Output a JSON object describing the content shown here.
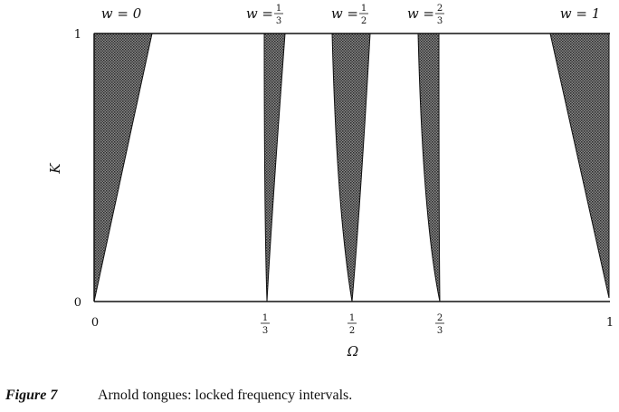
{
  "diagram": {
    "x_axis_label": "Ω",
    "y_axis_label": "K",
    "x_ticks": {
      "t0": "0",
      "t13": {
        "num": "1",
        "den": "3"
      },
      "t12": {
        "num": "1",
        "den": "2"
      },
      "t23": {
        "num": "2",
        "den": "3"
      },
      "t1": "1"
    },
    "y_ticks": {
      "bottom": "0",
      "top": "1"
    },
    "tongue_labels": {
      "w0": "w = 0",
      "w13": {
        "prefix": "w = ",
        "num": "1",
        "den": "3"
      },
      "w12": {
        "prefix": "w = ",
        "num": "1",
        "den": "2"
      },
      "w23": {
        "prefix": "w = ",
        "num": "2",
        "den": "3"
      },
      "w1": "w = 1"
    },
    "tongues": [
      {
        "w": 0,
        "tip_omega": 0,
        "omega_range_at_K1": [
          0,
          0.2
        ]
      },
      {
        "w": 0.3333,
        "tip_omega": 0.3333,
        "omega_range_at_K1": [
          0.3,
          0.37
        ]
      },
      {
        "w": 0.5,
        "tip_omega": 0.5,
        "omega_range_at_K1": [
          0.45,
          0.56
        ]
      },
      {
        "w": 0.6667,
        "tip_omega": 0.6667,
        "omega_range_at_K1": [
          0.63,
          0.7
        ]
      },
      {
        "w": 1,
        "tip_omega": 1,
        "omega_range_at_K1": [
          0.88,
          1
        ]
      }
    ],
    "shading_color": "#555555"
  },
  "caption": {
    "figure_label": "Figure 7",
    "text": "Arnold tongues: locked frequency intervals."
  }
}
